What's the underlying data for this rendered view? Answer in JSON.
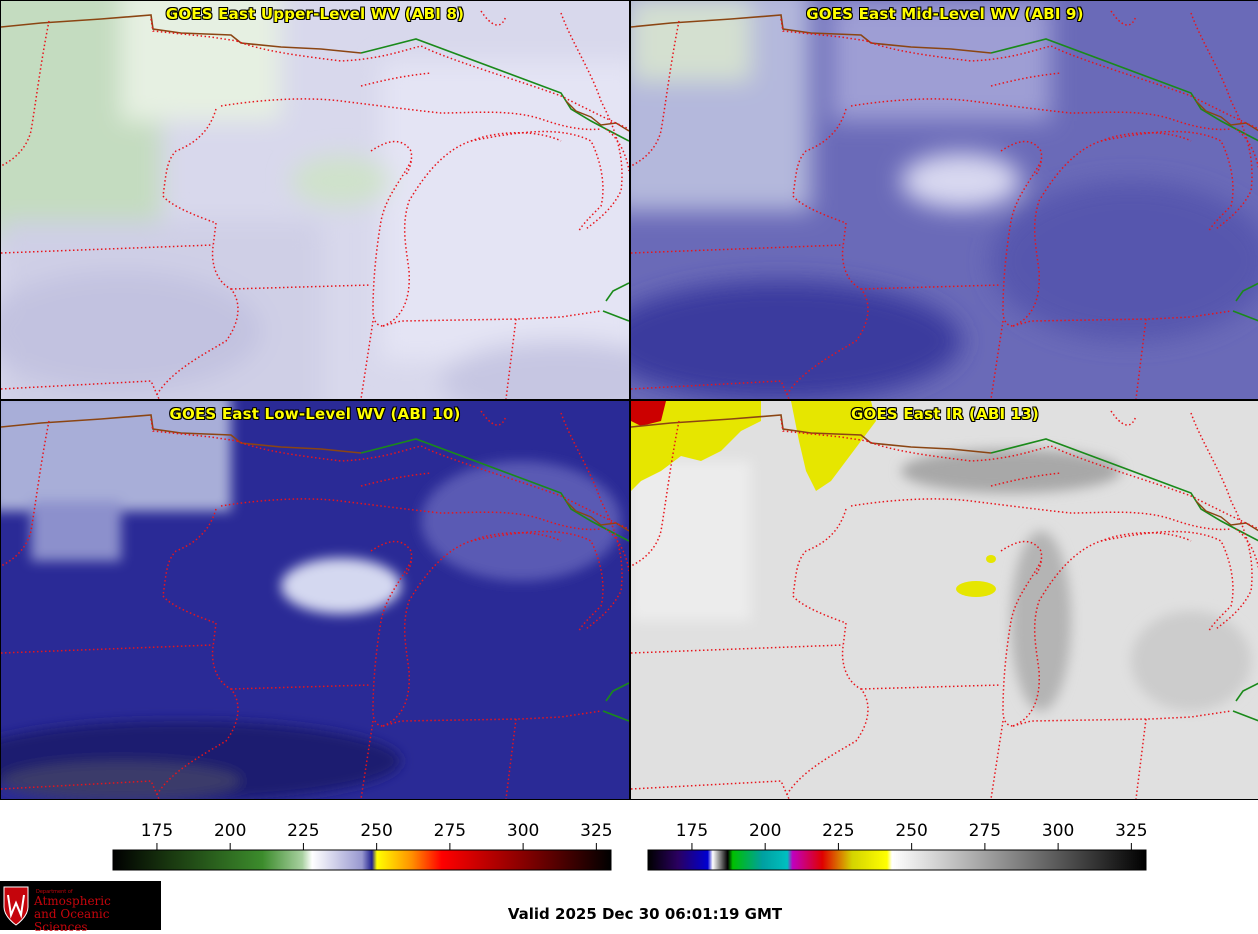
{
  "panels": [
    {
      "id": "upper",
      "title": "GOES East Upper-Level WV (ABI 8)"
    },
    {
      "id": "mid",
      "title": "GOES East Mid-Level WV (ABI 9)"
    },
    {
      "id": "low",
      "title": "GOES East Low-Level WV (ABI 10)"
    },
    {
      "id": "ir",
      "title": "GOES East IR (ABI 13)"
    }
  ],
  "colorbars": {
    "wv": {
      "ticks": [
        "175",
        "200",
        "225",
        "250",
        "275",
        "300",
        "325"
      ]
    },
    "ir": {
      "ticks": [
        "175",
        "200",
        "225",
        "250",
        "275",
        "300",
        "325"
      ]
    }
  },
  "footer": {
    "valid_time": "Valid 2025 Dec 30 06:01:19 GMT",
    "logo_line1": "Department of",
    "logo_line2": "Atmospheric",
    "logo_line3": "and Oceanic Sciences"
  },
  "colors": {
    "state_border": "#e8141b",
    "country_border_green": "#1a8a1a",
    "country_border_brown": "#8b4513",
    "title_text": "#ffff00"
  }
}
